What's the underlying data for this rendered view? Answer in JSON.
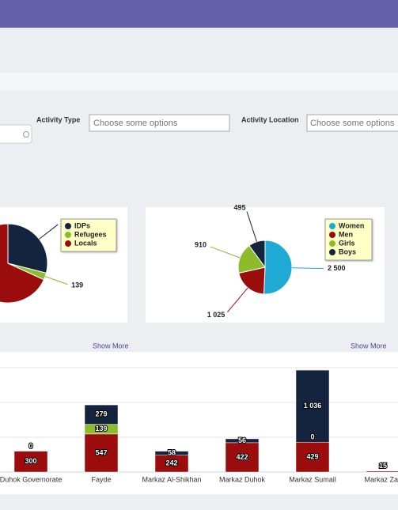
{
  "filters": [
    {
      "label": "Activity Type",
      "placeholder": "Choose some options"
    },
    {
      "label": "Activity Location",
      "placeholder": "Choose some options"
    }
  ],
  "show_more": [
    "Show More",
    "Show More"
  ],
  "chart_data": [
    {
      "type": "pie",
      "categories": [
        "IDPs",
        "Refugees",
        "Locals"
      ],
      "values": [
        1429,
        139,
        3362
      ],
      "colors": [
        "#14243f",
        "#8cbc2b",
        "#9b0d0d"
      ]
    },
    {
      "type": "pie",
      "categories": [
        "Women",
        "Men",
        "Girls",
        "Boys"
      ],
      "values": [
        2500,
        1025,
        910,
        495
      ],
      "value_labels": [
        "2 500",
        "1 025",
        "910",
        "495"
      ],
      "colors": [
        "#21a9d6",
        "#9b0d0d",
        "#8cbc2b",
        "#14243f"
      ]
    },
    {
      "type": "bar",
      "stacked": true,
      "categories": [
        "Duhok Governorate",
        "Fayde",
        "Markaz Al-Shikhan",
        "Markaz Duhok",
        "Markaz Sumail",
        "Markaz Zak"
      ],
      "series": [
        {
          "name": "Locals",
          "color": "#9b0d0d",
          "values": [
            300,
            547,
            242,
            422,
            429,
            15
          ]
        },
        {
          "name": "Refugees",
          "color": "#8cbc2b",
          "values": [
            0,
            139,
            null,
            null,
            0,
            null
          ]
        },
        {
          "name": "IDPs",
          "color": "#14243f",
          "values": [
            null,
            279,
            58,
            56,
            1036,
            null
          ],
          "value_labels": [
            null,
            "279",
            "58",
            "56",
            "1 036",
            null
          ]
        }
      ],
      "ylim": [
        0,
        1500
      ],
      "yticks": [
        0,
        500,
        1000,
        1500
      ],
      "grid": true
    }
  ]
}
